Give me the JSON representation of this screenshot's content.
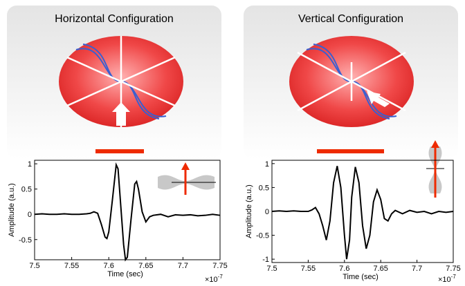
{
  "chart_data": [
    {
      "type": "line",
      "title": "Horizontal Configuration",
      "x_label": "Time (sec)",
      "y_label": "Amplitude (a.u.)",
      "x_scale_base": "×10",
      "x_scale_exponent": "-7",
      "x": [
        7.5,
        7.51,
        7.52,
        7.53,
        7.54,
        7.55,
        7.56,
        7.57,
        7.575,
        7.58,
        7.585,
        7.59,
        7.595,
        7.5975,
        7.6,
        7.605,
        7.61,
        7.6125,
        7.615,
        7.62,
        7.6225,
        7.625,
        7.63,
        7.635,
        7.6375,
        7.64,
        7.645,
        7.65,
        7.655,
        7.66,
        7.67,
        7.68,
        7.69,
        7.7,
        7.71,
        7.72,
        7.73,
        7.74,
        7.75
      ],
      "series": [
        {
          "color": "#000000",
          "values": [
            0,
            0.01,
            0,
            0,
            0.01,
            0,
            0,
            0.01,
            0.02,
            0.05,
            0.02,
            -0.2,
            -0.45,
            -0.48,
            -0.35,
            0.3,
            0.98,
            0.9,
            0.4,
            -0.6,
            -0.9,
            -0.85,
            -0.1,
            0.6,
            0.65,
            0.5,
            0.05,
            -0.15,
            -0.05,
            -0.02,
            0,
            -0.05,
            -0.01,
            -0.02,
            -0.01,
            -0.03,
            -0.02,
            0,
            -0.02
          ]
        }
      ],
      "xlim": [
        7.5,
        7.75
      ],
      "xticks": [
        7.5,
        7.55,
        7.6,
        7.65,
        7.7,
        7.75
      ],
      "ylim": [
        -0.9,
        1.07
      ],
      "yticks": [
        -0.5,
        0,
        0.5,
        1
      ]
    },
    {
      "type": "line",
      "title": "Vertical Configuration",
      "x_label": "Time (sec)",
      "y_label": "Amplitude (a.u.)",
      "x_scale_base": "×10",
      "x_scale_exponent": "-7",
      "x": [
        7.5,
        7.51,
        7.52,
        7.53,
        7.54,
        7.55,
        7.555,
        7.56,
        7.565,
        7.57,
        7.575,
        7.58,
        7.585,
        7.59,
        7.595,
        7.6,
        7.603,
        7.607,
        7.61,
        7.615,
        7.62,
        7.625,
        7.63,
        7.635,
        7.64,
        7.645,
        7.65,
        7.655,
        7.66,
        7.665,
        7.67,
        7.68,
        7.69,
        7.7,
        7.71,
        7.72,
        7.73,
        7.74,
        7.75
      ],
      "series": [
        {
          "color": "#000000",
          "values": [
            0,
            0.01,
            0,
            0.01,
            0,
            0,
            0.03,
            0.08,
            -0.05,
            -0.3,
            -0.6,
            -0.2,
            0.6,
            0.95,
            0.5,
            -0.5,
            -1.0,
            -0.6,
            0.3,
            0.93,
            0.6,
            -0.3,
            -0.78,
            -0.5,
            0.2,
            0.45,
            0.25,
            -0.15,
            -0.2,
            -0.05,
            0.02,
            -0.05,
            0.02,
            -0.02,
            0,
            -0.05,
            0,
            -0.02,
            0
          ]
        }
      ],
      "xlim": [
        7.5,
        7.75
      ],
      "xticks": [
        7.5,
        7.55,
        7.6,
        7.65,
        7.7,
        7.75
      ],
      "ylim": [
        -1.07,
        1.07
      ],
      "yticks": [
        -1,
        -0.5,
        0,
        0.5,
        1
      ]
    }
  ]
}
